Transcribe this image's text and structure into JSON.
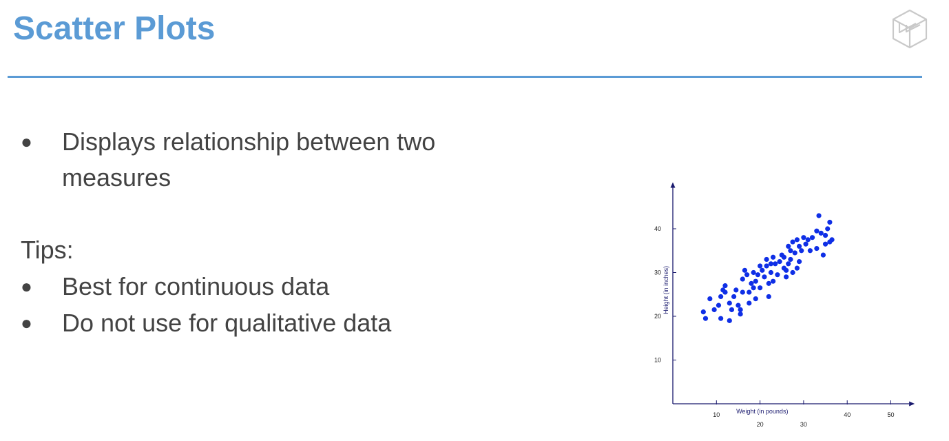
{
  "slide": {
    "title": "Scatter Plots",
    "accent_color": "#5b9bd5",
    "text_color": "#434343",
    "logo_icon": "cube-logo-icon"
  },
  "bullets_top": [
    {
      "text": "Displays relationship between two"
    },
    {
      "text": "measures"
    }
  ],
  "tips": {
    "label": "Tips:",
    "items": [
      {
        "text": "Best for continuous data"
      },
      {
        "text": "Do not use for qualitative data"
      }
    ]
  },
  "chart_data": {
    "type": "scatter",
    "title": "",
    "xlabel": "Weight (in pounds)",
    "ylabel": "Height (in inches)",
    "xlim": [
      0,
      55
    ],
    "ylim": [
      0,
      50
    ],
    "x_ticks": [
      {
        "value": 10,
        "label": "10"
      },
      {
        "value": 20,
        "label": "20"
      },
      {
        "value": 30,
        "label": "30"
      },
      {
        "value": 40,
        "label": "40"
      },
      {
        "value": 50,
        "label": "50"
      }
    ],
    "y_ticks": [
      {
        "value": 10,
        "label": "10"
      },
      {
        "value": 20,
        "label": "20"
      },
      {
        "value": 30,
        "label": "30"
      },
      {
        "value": 40,
        "label": "40"
      }
    ],
    "grid": false,
    "point_color": "#0f2fe6",
    "axis_color": "#1a1a6e",
    "series": [
      {
        "points": [
          [
            7.0,
            21.0
          ],
          [
            7.5,
            19.5
          ],
          [
            8.5,
            24.0
          ],
          [
            9.5,
            21.5
          ],
          [
            10.5,
            22.5
          ],
          [
            11.0,
            19.5
          ],
          [
            11.0,
            24.5
          ],
          [
            11.5,
            26.0
          ],
          [
            12.0,
            25.5
          ],
          [
            12.0,
            27.0
          ],
          [
            13.0,
            19.0
          ],
          [
            13.0,
            23.0
          ],
          [
            13.5,
            21.5
          ],
          [
            14.0,
            24.5
          ],
          [
            14.5,
            26.0
          ],
          [
            15.0,
            22.5
          ],
          [
            15.5,
            21.5
          ],
          [
            15.5,
            20.5
          ],
          [
            16.0,
            25.5
          ],
          [
            16.0,
            28.5
          ],
          [
            16.5,
            30.5
          ],
          [
            17.0,
            29.5
          ],
          [
            17.5,
            25.5
          ],
          [
            17.5,
            23.0
          ],
          [
            18.0,
            27.5
          ],
          [
            18.5,
            26.5
          ],
          [
            18.5,
            30.0
          ],
          [
            19.0,
            24.0
          ],
          [
            19.0,
            28.0
          ],
          [
            19.5,
            29.5
          ],
          [
            20.0,
            31.5
          ],
          [
            20.0,
            26.5
          ],
          [
            20.5,
            30.5
          ],
          [
            21.0,
            29.0
          ],
          [
            21.5,
            33.0
          ],
          [
            21.5,
            31.5
          ],
          [
            22.0,
            24.5
          ],
          [
            22.0,
            27.5
          ],
          [
            22.5,
            30.0
          ],
          [
            22.5,
            32.0
          ],
          [
            23.0,
            33.5
          ],
          [
            23.0,
            28.0
          ],
          [
            23.5,
            32.0
          ],
          [
            24.0,
            29.5
          ],
          [
            24.5,
            32.5
          ],
          [
            25.0,
            34.0
          ],
          [
            25.5,
            31.0
          ],
          [
            25.5,
            33.5
          ],
          [
            26.0,
            29.0
          ],
          [
            26.0,
            30.5
          ],
          [
            26.5,
            32.0
          ],
          [
            26.5,
            36.0
          ],
          [
            27.0,
            35.0
          ],
          [
            27.0,
            33.0
          ],
          [
            27.5,
            37.0
          ],
          [
            27.5,
            30.0
          ],
          [
            28.0,
            34.5
          ],
          [
            28.5,
            37.5
          ],
          [
            28.5,
            31.0
          ],
          [
            29.0,
            36.0
          ],
          [
            29.0,
            32.5
          ],
          [
            29.5,
            35.0
          ],
          [
            30.0,
            38.0
          ],
          [
            30.5,
            36.5
          ],
          [
            31.0,
            37.5
          ],
          [
            31.5,
            35.0
          ],
          [
            32.0,
            38.0
          ],
          [
            33.0,
            35.5
          ],
          [
            33.0,
            39.5
          ],
          [
            33.5,
            43.0
          ],
          [
            34.0,
            39.0
          ],
          [
            34.5,
            34.0
          ],
          [
            35.0,
            38.5
          ],
          [
            35.0,
            36.5
          ],
          [
            35.5,
            40.0
          ],
          [
            36.0,
            41.5
          ],
          [
            36.5,
            37.5
          ],
          [
            36.0,
            37.0
          ]
        ]
      }
    ]
  }
}
